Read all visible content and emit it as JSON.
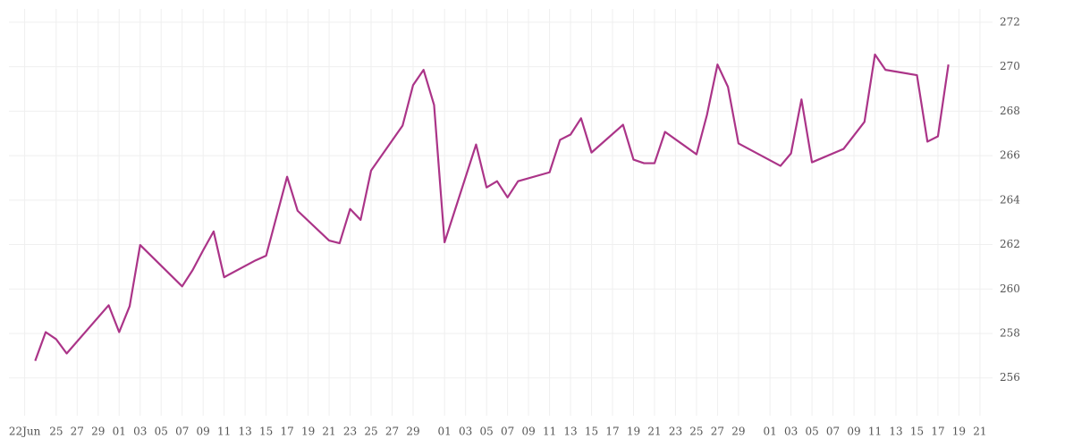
{
  "chart_data": {
    "type": "line",
    "x": [
      1,
      2,
      3,
      4,
      8,
      9,
      10,
      11,
      15,
      16,
      17,
      18,
      19,
      22,
      23,
      25,
      26,
      29,
      30,
      31,
      32,
      33,
      36,
      37,
      38,
      39,
      40,
      43,
      44,
      45,
      46,
      47,
      50,
      51,
      52,
      53,
      54,
      57,
      58,
      59,
      60,
      61,
      64,
      65,
      66,
      67,
      68,
      72,
      73,
      74,
      75,
      78,
      80,
      81,
      82,
      85,
      86,
      87,
      88
    ],
    "series": [
      {
        "color": "#ab3488",
        "values": [
          256.77,
          258.06,
          257.74,
          257.1,
          259.27,
          258.06,
          259.23,
          261.98,
          260.12,
          260.85,
          261.74,
          262.59,
          260.53,
          261.29,
          261.5,
          265.05,
          263.52,
          262.18,
          262.06,
          263.6,
          263.11,
          265.33,
          267.35,
          269.17,
          269.86,
          268.28,
          262.1,
          266.5,
          264.57,
          264.85,
          264.12,
          264.85,
          265.25,
          266.71,
          266.95,
          267.68,
          266.14,
          267.39,
          265.82,
          265.66,
          265.66,
          267.07,
          266.06,
          267.84,
          270.1,
          269.09,
          266.55,
          265.54,
          266.1,
          268.53,
          265.7,
          266.3,
          267.52,
          270.55,
          269.86,
          269.62,
          266.63,
          266.87,
          270.1
        ]
      }
    ],
    "xlim": [
      -1.5,
      92.2
    ],
    "xticks": [
      {
        "value": 0,
        "label": "22Jun"
      },
      {
        "value": 3,
        "label": "25"
      },
      {
        "value": 5,
        "label": "27"
      },
      {
        "value": 7,
        "label": "29"
      },
      {
        "value": 9,
        "label": "01"
      },
      {
        "value": 11,
        "label": "03"
      },
      {
        "value": 13,
        "label": "05"
      },
      {
        "value": 15,
        "label": "07"
      },
      {
        "value": 17,
        "label": "09"
      },
      {
        "value": 19,
        "label": "11"
      },
      {
        "value": 21,
        "label": "13"
      },
      {
        "value": 23,
        "label": "15"
      },
      {
        "value": 25,
        "label": "17"
      },
      {
        "value": 27,
        "label": "19"
      },
      {
        "value": 29,
        "label": "21"
      },
      {
        "value": 31,
        "label": "23"
      },
      {
        "value": 33,
        "label": "25"
      },
      {
        "value": 35,
        "label": "27"
      },
      {
        "value": 37,
        "label": "29"
      },
      {
        "value": 40,
        "label": "01"
      },
      {
        "value": 42,
        "label": "03"
      },
      {
        "value": 44,
        "label": "05"
      },
      {
        "value": 46,
        "label": "07"
      },
      {
        "value": 48,
        "label": "09"
      },
      {
        "value": 50,
        "label": "11"
      },
      {
        "value": 52,
        "label": "13"
      },
      {
        "value": 54,
        "label": "15"
      },
      {
        "value": 56,
        "label": "17"
      },
      {
        "value": 58,
        "label": "19"
      },
      {
        "value": 60,
        "label": "21"
      },
      {
        "value": 62,
        "label": "23"
      },
      {
        "value": 64,
        "label": "25"
      },
      {
        "value": 66,
        "label": "27"
      },
      {
        "value": 68,
        "label": "29"
      },
      {
        "value": 71,
        "label": "01"
      },
      {
        "value": 73,
        "label": "03"
      },
      {
        "value": 75,
        "label": "05"
      },
      {
        "value": 77,
        "label": "07"
      },
      {
        "value": 79,
        "label": "09"
      },
      {
        "value": 81,
        "label": "11"
      },
      {
        "value": 83,
        "label": "13"
      },
      {
        "value": 85,
        "label": "15"
      },
      {
        "value": 87,
        "label": "17"
      },
      {
        "value": 89,
        "label": "19"
      },
      {
        "value": 91,
        "label": "21"
      }
    ],
    "ylim": [
      254.3,
      272.6
    ],
    "yticks": [
      256,
      258,
      260,
      262,
      264,
      266,
      268,
      270,
      272
    ],
    "grid": true
  }
}
